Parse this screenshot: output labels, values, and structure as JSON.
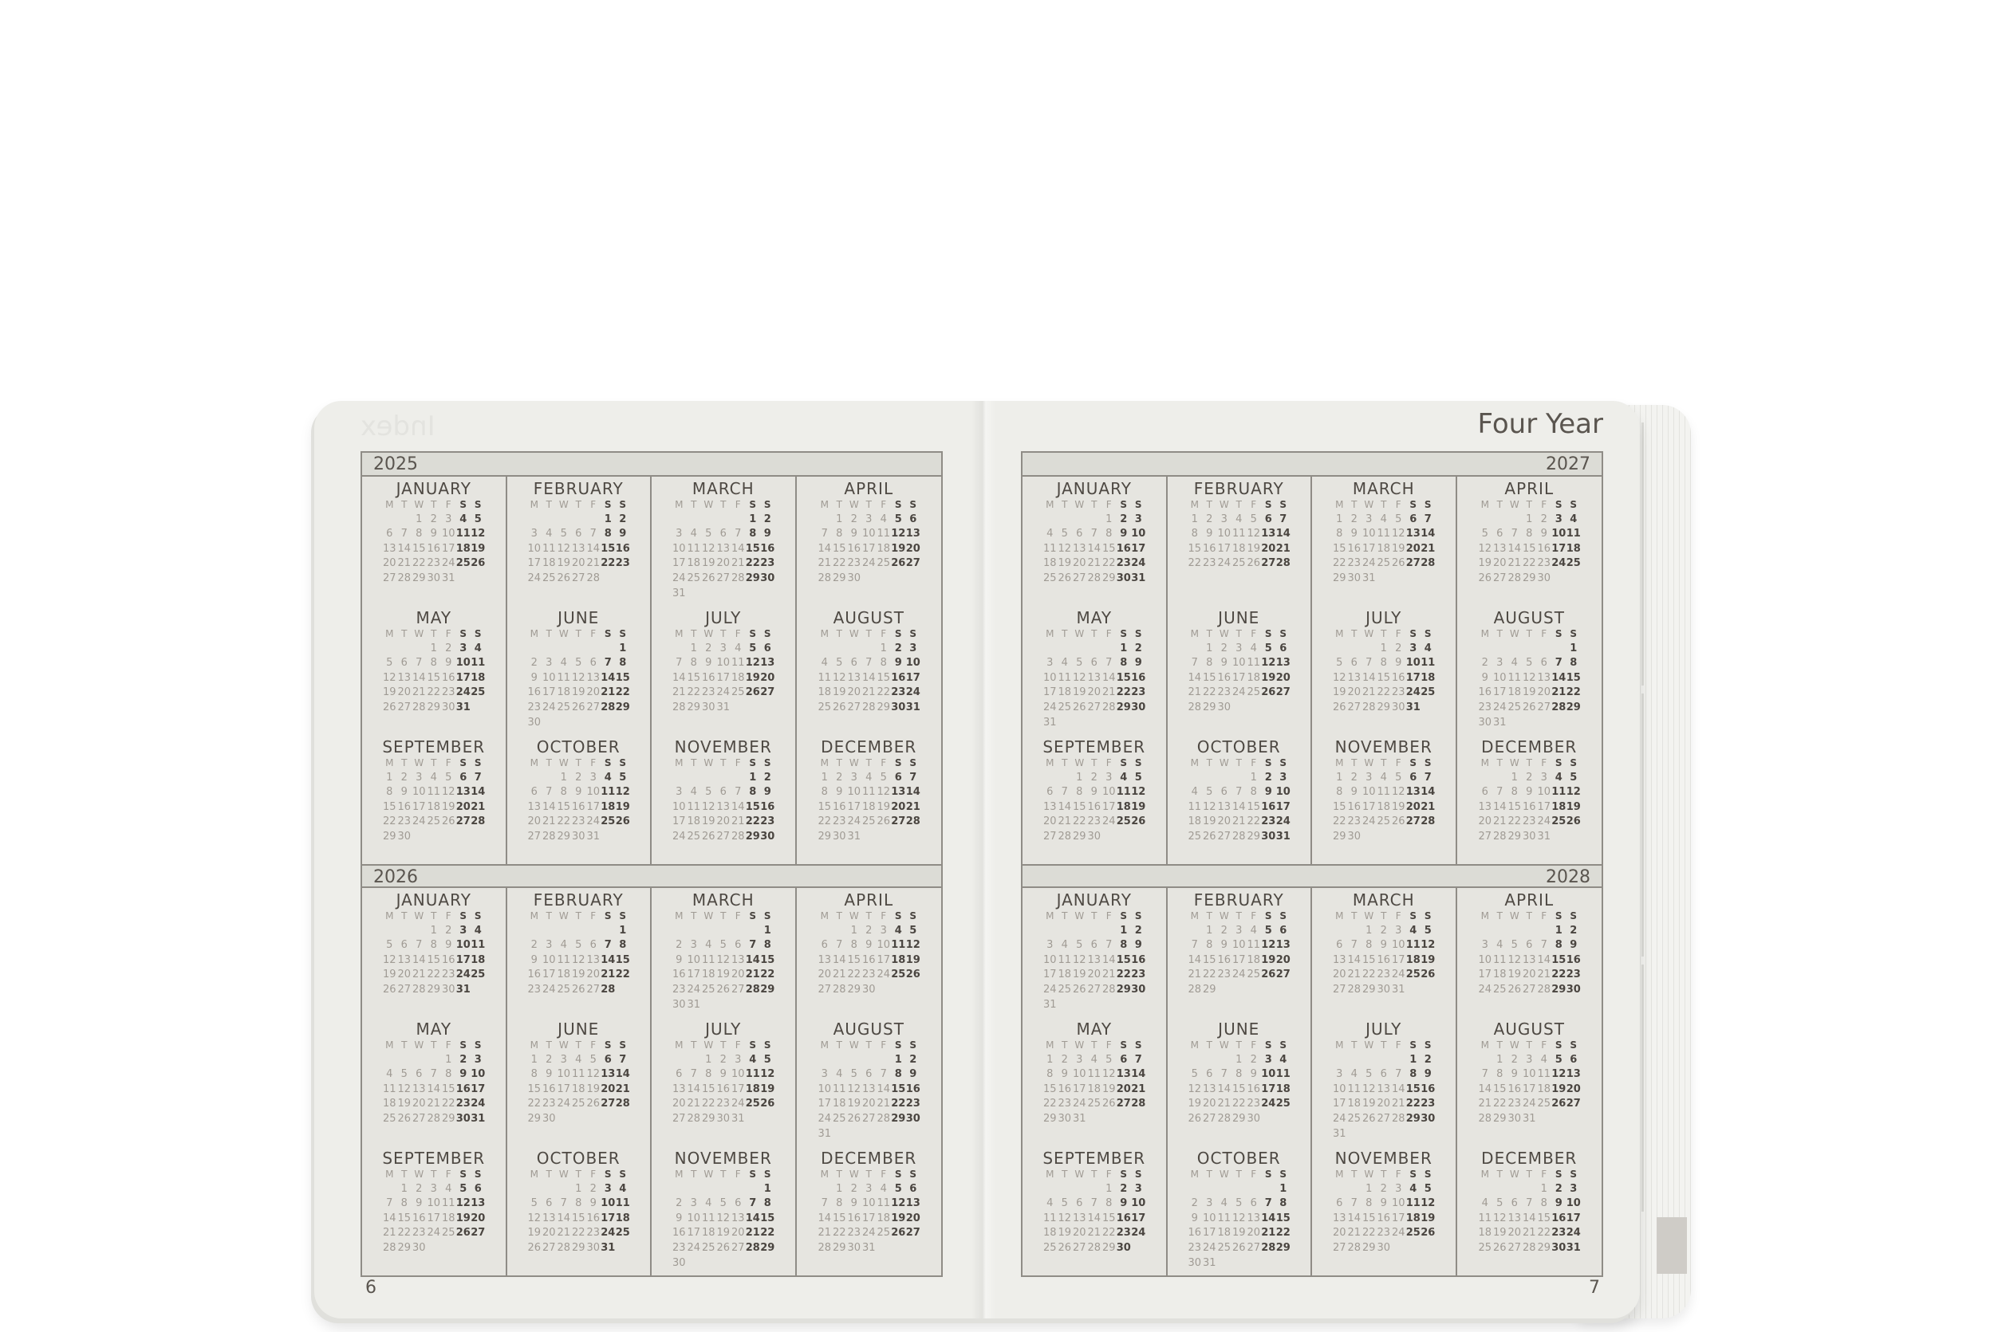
{
  "book": {
    "title": "Four Year",
    "ghost_text": "Index",
    "left_page_number": "6",
    "right_page_number": "7"
  },
  "weekdays": [
    "M",
    "T",
    "W",
    "T",
    "F",
    "S",
    "S"
  ],
  "months": [
    "JANUARY",
    "FEBRUARY",
    "MARCH",
    "APRIL",
    "MAY",
    "JUNE",
    "JULY",
    "AUGUST",
    "SEPTEMBER",
    "OCTOBER",
    "NOVEMBER",
    "DECEMBER"
  ],
  "years": [
    {
      "year": "2025",
      "page": "left",
      "header_align": "left"
    },
    {
      "year": "2026",
      "page": "left",
      "header_align": "left"
    },
    {
      "year": "2027",
      "page": "right",
      "header_align": "right"
    },
    {
      "year": "2028",
      "page": "right",
      "header_align": "right"
    }
  ],
  "colors": {
    "weekend": "#4a4540",
    "weekday": "#a09b94",
    "border": "#8f8c86",
    "tab_marker": "#cfccc7"
  }
}
